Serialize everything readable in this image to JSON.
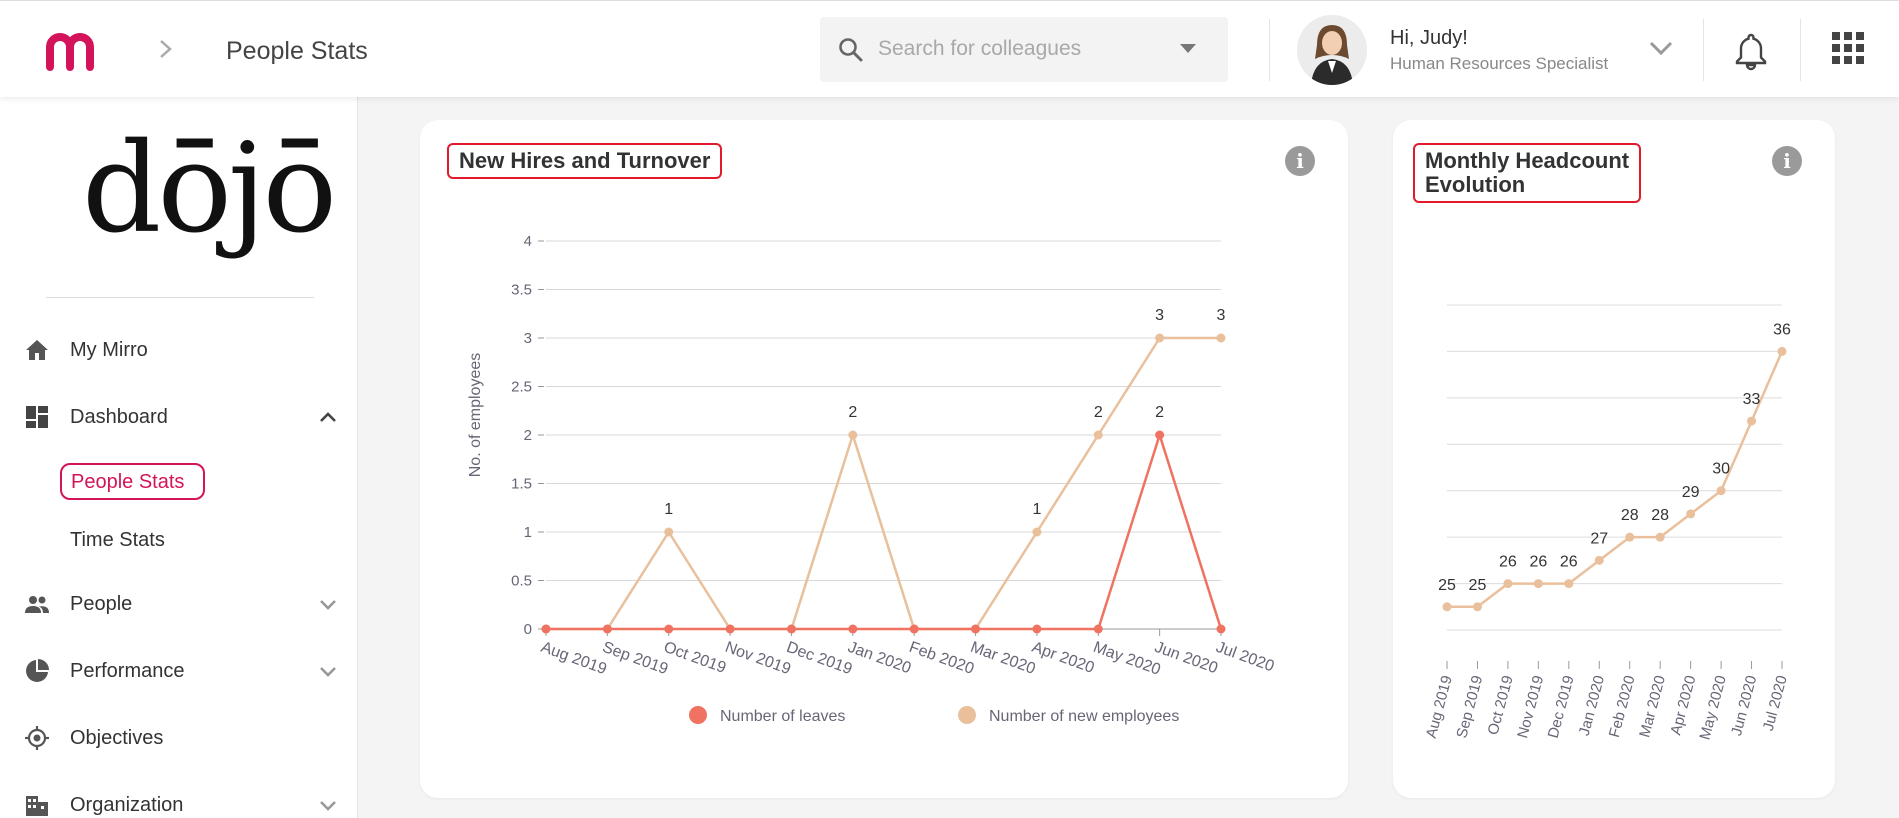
{
  "header": {
    "page_title": "People Stats",
    "search_placeholder": "Search for colleagues",
    "greeting": "Hi, Judy!",
    "role": "Human Resources Specialist"
  },
  "brand": {
    "wordmark": "dōjō",
    "accent": "#d4145a"
  },
  "sidebar": {
    "items": [
      {
        "label": "My Mirro",
        "icon": "home-icon"
      },
      {
        "label": "Dashboard",
        "icon": "dashboard-icon",
        "expanded": true
      },
      {
        "label": "People",
        "icon": "people-icon"
      },
      {
        "label": "Performance",
        "icon": "pie-chart-icon"
      },
      {
        "label": "Objectives",
        "icon": "target-icon"
      },
      {
        "label": "Organization",
        "icon": "organization-icon"
      }
    ],
    "dashboard_sub": [
      {
        "label": "People Stats",
        "active": true
      },
      {
        "label": "Time Stats",
        "active": false
      }
    ]
  },
  "cards": {
    "hires": {
      "title": "New Hires and Turnover",
      "info": "i"
    },
    "headcount": {
      "title_line1": "Monthly Headcount",
      "title_line2": "Evolution",
      "info": "i"
    }
  },
  "chart_data": [
    {
      "type": "line",
      "title": "New Hires and Turnover",
      "ylabel": "No. of employees",
      "ylim": [
        0,
        4
      ],
      "yticks": [
        "0",
        "0.5",
        "1",
        "1.5",
        "2",
        "2.5",
        "3",
        "3.5",
        "4"
      ],
      "categories": [
        "Aug 2019",
        "Sep 2019",
        "Oct 2019",
        "Nov 2019",
        "Dec 2019",
        "Jan 2020",
        "Feb 2020",
        "Mar 2020",
        "Apr 2020",
        "May 2020",
        "Jun 2020",
        "Jul 2020"
      ],
      "series": [
        {
          "name": "Number of leaves",
          "color": "#f07260",
          "values": [
            0,
            0,
            0,
            0,
            0,
            0,
            0,
            0,
            0,
            0,
            2,
            0
          ]
        },
        {
          "name": "Number of new employees",
          "color": "#e9c09b",
          "values": [
            0,
            0,
            1,
            0,
            0,
            2,
            0,
            0,
            1,
            2,
            3,
            3
          ]
        }
      ],
      "legend": "bottom",
      "grid": true
    },
    {
      "type": "line",
      "title": "Monthly Headcount Evolution",
      "categories": [
        "Aug 2019",
        "Sep 2019",
        "Oct 2019",
        "Nov 2019",
        "Dec 2019",
        "Jan 2020",
        "Feb 2020",
        "Mar 2020",
        "Apr 2020",
        "May 2020",
        "Jun 2020",
        "Jul 2020"
      ],
      "series": [
        {
          "color": "#e9c09b",
          "values": [
            25,
            25,
            26,
            26,
            26,
            27,
            28,
            28,
            29,
            30,
            33,
            36
          ]
        }
      ],
      "ylim": [
        24,
        38
      ],
      "grid": true
    }
  ]
}
